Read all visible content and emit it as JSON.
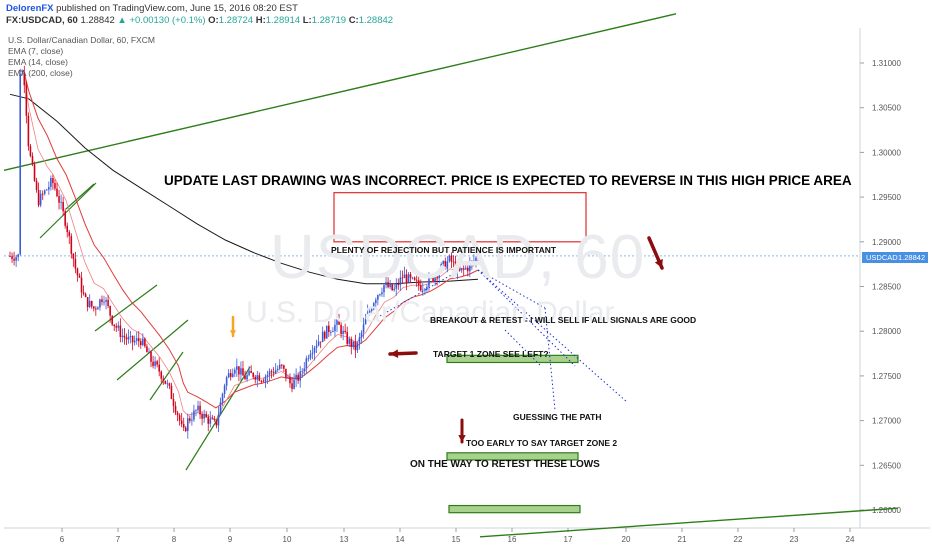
{
  "header": {
    "author": "DelorenFX",
    "published": "published on TradingView.com, June 15, 2016 08:20 EST",
    "symbol_line": "FX:USDCAD, 60",
    "last": "1.28842",
    "change": "+0.00130 (+0.1%)",
    "open": "1.28724",
    "high": "1.28914",
    "low": "1.28719",
    "close": "1.28842",
    "o_label": "O:",
    "h_label": "H:",
    "l_label": "L:",
    "c_label": "C:"
  },
  "legend": {
    "title": "U.S. Dollar/Canadian Dollar, 60, FXCM",
    "ema7": "EMA (7, close)",
    "ema14": "EMA (14, close)",
    "ema200": "EMA (200, close)"
  },
  "watermark": {
    "symbol": "USDCAD, 60",
    "description": "U.S. Dollar/Canadian Dollar"
  },
  "price_tag": {
    "symbol": "USDCAD",
    "value": "1.28842"
  },
  "annotations": {
    "headline": "UPDATE LAST DRAWING WAS INCORRECT. PRICE IS EXPECTED TO REVERSE IN THIS HIGH PRICE AREA",
    "rejection": "PLENTY OF REJECTION BUT PATIENCE IS IMPORTANT",
    "breakout": "BREAKOUT & RETEST - I WILL SELL IF ALL SIGNALS ARE GOOD",
    "target1": "TARGET 1 ZONE SEE LEFT?",
    "guessing": "GUESSING THE PATH",
    "target2": "TOO EARLY TO SAY TARGET ZONE 2",
    "lows": "ON THE WAY TO RETEST THESE LOWS"
  },
  "colors": {
    "bull": "#3a5bd9",
    "bear": "#d0021b",
    "ema_fast": "#e03c3c",
    "ema_slow": "#1a1a1a",
    "trendline": "#2e7d1a",
    "zone_fill": "#a9d18e",
    "zone_border": "#2e7d1a",
    "rect": "#e03c3c",
    "arrow_red": "#8b0d0d",
    "arrow_orange": "#f5a623",
    "path_dots": "#2233cc",
    "price_line": "#4a90e2"
  },
  "chart_data": {
    "type": "candlestick",
    "symbol": "USDCAD",
    "timeframe": "60",
    "y_axis": {
      "ticks": [
        "1.31000",
        "1.30500",
        "1.30000",
        "1.29500",
        "1.29000",
        "1.28500",
        "1.28000",
        "1.27500",
        "1.27000",
        "1.26500",
        "1.26000"
      ],
      "ylim": [
        1.2575,
        1.3135
      ]
    },
    "x_axis": {
      "ticks": [
        "6",
        "7",
        "8",
        "9",
        "10",
        "13",
        "14",
        "15",
        "16",
        "17",
        "20",
        "21",
        "22",
        "23",
        "24"
      ]
    },
    "last_price": 1.28842,
    "path_points": [
      [
        1.0,
        1.3092
      ],
      [
        1.5,
        1.3085
      ],
      [
        2.0,
        1.3005
      ],
      [
        3.0,
        1.2945
      ],
      [
        4.0,
        1.296
      ],
      [
        4.5,
        1.2968
      ],
      [
        5.0,
        1.2955
      ],
      [
        6.0,
        1.292
      ],
      [
        7.0,
        1.287
      ],
      [
        8.0,
        1.2835
      ],
      [
        9.0,
        1.2825
      ],
      [
        10.0,
        1.284
      ],
      [
        11.0,
        1.281
      ],
      [
        12.0,
        1.2795
      ],
      [
        13.0,
        1.2788
      ],
      [
        14.0,
        1.279
      ],
      [
        15.0,
        1.2768
      ],
      [
        16.0,
        1.2755
      ],
      [
        17.0,
        1.2735
      ],
      [
        18.0,
        1.2705
      ],
      [
        18.5,
        1.2685
      ],
      [
        19.0,
        1.27
      ],
      [
        20.0,
        1.2712
      ],
      [
        21.0,
        1.2702
      ],
      [
        22.0,
        1.2695
      ],
      [
        23.0,
        1.2745
      ],
      [
        24.0,
        1.2762
      ],
      [
        25.0,
        1.2748
      ],
      [
        26.0,
        1.2752
      ],
      [
        27.0,
        1.2748
      ],
      [
        28.0,
        1.2755
      ],
      [
        29.0,
        1.276
      ],
      [
        30.0,
        1.274
      ],
      [
        31.0,
        1.275
      ],
      [
        32.0,
        1.2778
      ],
      [
        33.0,
        1.279
      ],
      [
        34.0,
        1.2802
      ],
      [
        35.0,
        1.2808
      ],
      [
        36.0,
        1.279
      ],
      [
        37.0,
        1.278
      ],
      [
        38.0,
        1.2812
      ],
      [
        39.0,
        1.2838
      ],
      [
        40.0,
        1.2852
      ],
      [
        41.0,
        1.2845
      ],
      [
        42.0,
        1.2862
      ],
      [
        43.0,
        1.2855
      ],
      [
        44.0,
        1.285
      ],
      [
        45.0,
        1.2858
      ],
      [
        46.0,
        1.287
      ],
      [
        47.0,
        1.288
      ],
      [
        48.0,
        1.2866
      ],
      [
        49.0,
        1.2872
      ],
      [
        50.0,
        1.2884
      ]
    ],
    "ema200": [
      [
        0.0,
        1.3065
      ],
      [
        2.0,
        1.306
      ],
      [
        5.0,
        1.3035
      ],
      [
        8.0,
        1.3005
      ],
      [
        11.0,
        1.298
      ],
      [
        14.0,
        1.296
      ],
      [
        17.0,
        1.294
      ],
      [
        20.0,
        1.292
      ],
      [
        23.0,
        1.2902
      ],
      [
        26.0,
        1.2888
      ],
      [
        29.0,
        1.2876
      ],
      [
        32.0,
        1.2866
      ],
      [
        35.0,
        1.2858
      ],
      [
        38.0,
        1.2853
      ],
      [
        41.0,
        1.2853
      ],
      [
        44.0,
        1.2855
      ],
      [
        47.0,
        1.2856
      ],
      [
        50.0,
        1.2858
      ]
    ],
    "trendline_upper": [
      [
        1.298,
        "start"
      ],
      [
        1.3155,
        "end"
      ]
    ],
    "trendline_lower": [
      [
        1.257,
        "start"
      ],
      [
        1.2602,
        "end"
      ]
    ],
    "zones": [
      {
        "low": 1.2765,
        "high": 1.2773
      },
      {
        "low": 1.2656,
        "high": 1.2664
      },
      {
        "low": 1.2597,
        "high": 1.2605
      }
    ],
    "resistance_box": {
      "low": 1.29,
      "high": 1.2955
    }
  }
}
